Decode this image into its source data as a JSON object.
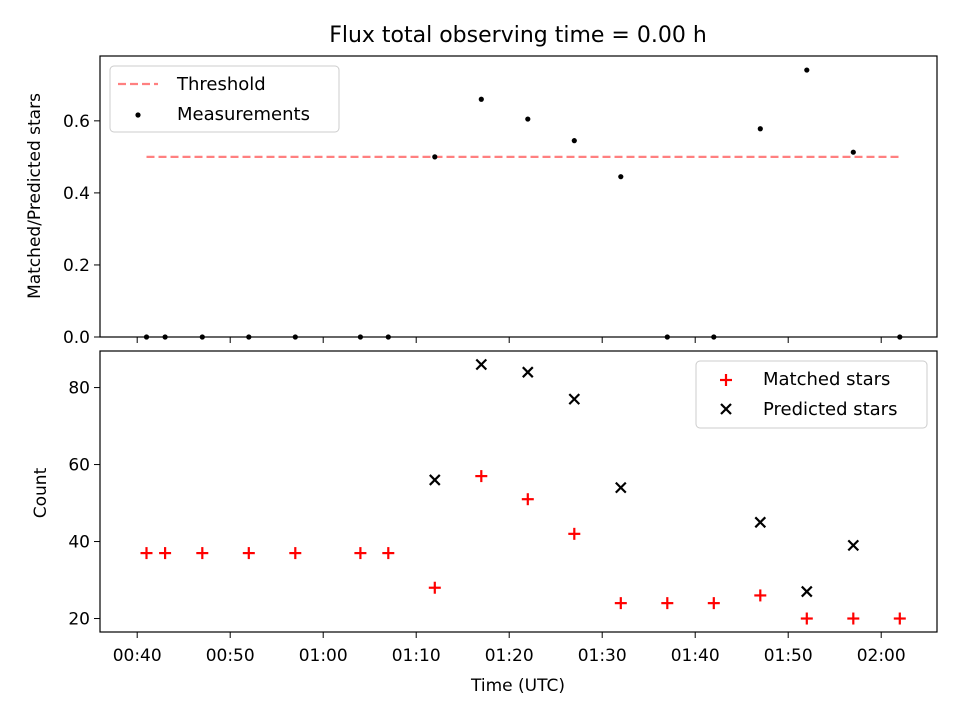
{
  "chart_data": [
    {
      "type": "scatter",
      "title": "Flux total observing time = 0.00 h",
      "xlabel": "",
      "ylabel": "Matched/Predicted stars",
      "xlim": [
        "00:36",
        "02:06"
      ],
      "ylim": [
        0,
        0.78
      ],
      "yticks": [
        "0.0",
        "0.2",
        "0.4",
        "0.6"
      ],
      "yticks_values": [
        0,
        0.2,
        0.4,
        0.6
      ],
      "legend_position": "upper-left",
      "threshold": {
        "name": "Threshold",
        "value": 0.5,
        "x_start": "00:41",
        "x_end": "02:02",
        "color": "#ff8080"
      },
      "series": [
        {
          "name": "Measurements",
          "color": "#000000",
          "x": [
            "00:41",
            "00:43",
            "00:47",
            "00:52",
            "00:57",
            "01:04",
            "01:07",
            "01:12",
            "01:17",
            "01:22",
            "01:27",
            "01:32",
            "01:37",
            "01:42",
            "01:47",
            "01:52",
            "01:57",
            "02:02"
          ],
          "values": [
            0,
            0,
            0,
            0,
            0,
            0,
            0,
            0.5,
            0.66,
            0.605,
            0.545,
            0.445,
            0,
            0,
            0.578,
            0.741,
            0.513,
            0
          ]
        }
      ]
    },
    {
      "type": "scatter",
      "title": "",
      "xlabel": "Time (UTC)",
      "ylabel": "Count",
      "xlim": [
        "00:36",
        "02:06"
      ],
      "ylim": [
        16.5,
        89.5
      ],
      "xticks": [
        "00:40",
        "00:50",
        "01:00",
        "01:10",
        "01:20",
        "01:30",
        "01:40",
        "01:50",
        "02:00"
      ],
      "yticks": [
        "20",
        "40",
        "60",
        "80"
      ],
      "yticks_values": [
        20,
        40,
        60,
        80
      ],
      "legend_position": "upper-right",
      "series": [
        {
          "name": "Matched stars",
          "color": "#ff0000",
          "marker": "plus",
          "x": [
            "00:41",
            "00:43",
            "00:47",
            "00:52",
            "00:57",
            "01:04",
            "01:07",
            "01:12",
            "01:17",
            "01:22",
            "01:27",
            "01:32",
            "01:37",
            "01:42",
            "01:47",
            "01:52",
            "01:57",
            "02:02"
          ],
          "values": [
            37,
            37,
            37,
            37,
            37,
            37,
            37,
            28,
            57,
            51,
            42,
            24,
            24,
            24,
            26,
            20,
            20,
            20
          ]
        },
        {
          "name": "Predicted stars",
          "color": "#000000",
          "marker": "x",
          "x": [
            "01:12",
            "01:17",
            "01:22",
            "01:27",
            "01:32",
            "01:47",
            "01:52",
            "01:57"
          ],
          "values": [
            56,
            86,
            84,
            77,
            54,
            45,
            27,
            39
          ]
        }
      ]
    }
  ]
}
